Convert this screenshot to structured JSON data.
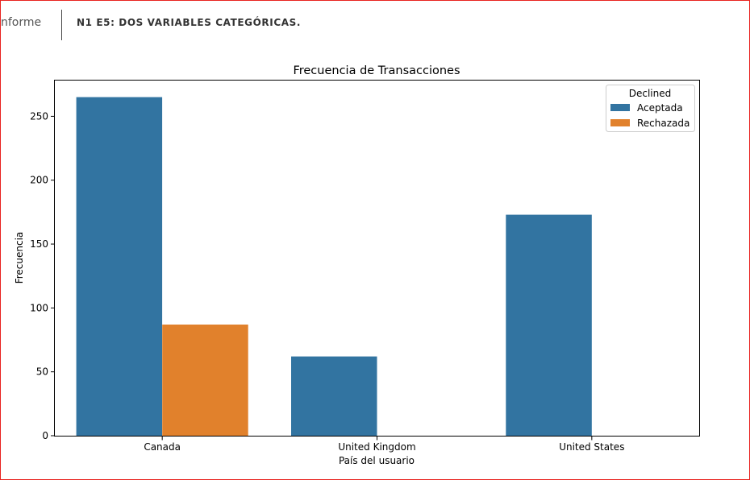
{
  "header": {
    "tab_label": "nforme",
    "section_title": "N1 E5: DOS VARIABLES CATEGÓRICAS."
  },
  "colors": {
    "frame_border": "#e8231f",
    "aceptada": "#3274a1",
    "rechazada": "#e1812c"
  },
  "chart_data": {
    "type": "bar",
    "title": "Frecuencia de Transacciones",
    "xlabel": "País del usuario",
    "ylabel": "Frecuencia",
    "categories": [
      "Canada",
      "United Kingdom",
      "United States"
    ],
    "series": [
      {
        "name": "Aceptada",
        "values": [
          265,
          62,
          173
        ]
      },
      {
        "name": "Rechazada",
        "values": [
          87,
          0,
          0
        ]
      }
    ],
    "ylim": [
      0,
      278
    ],
    "yticks": [
      0,
      50,
      100,
      150,
      200,
      250
    ],
    "legend": {
      "title": "Declined",
      "placement": "top-right"
    },
    "grid": false
  }
}
